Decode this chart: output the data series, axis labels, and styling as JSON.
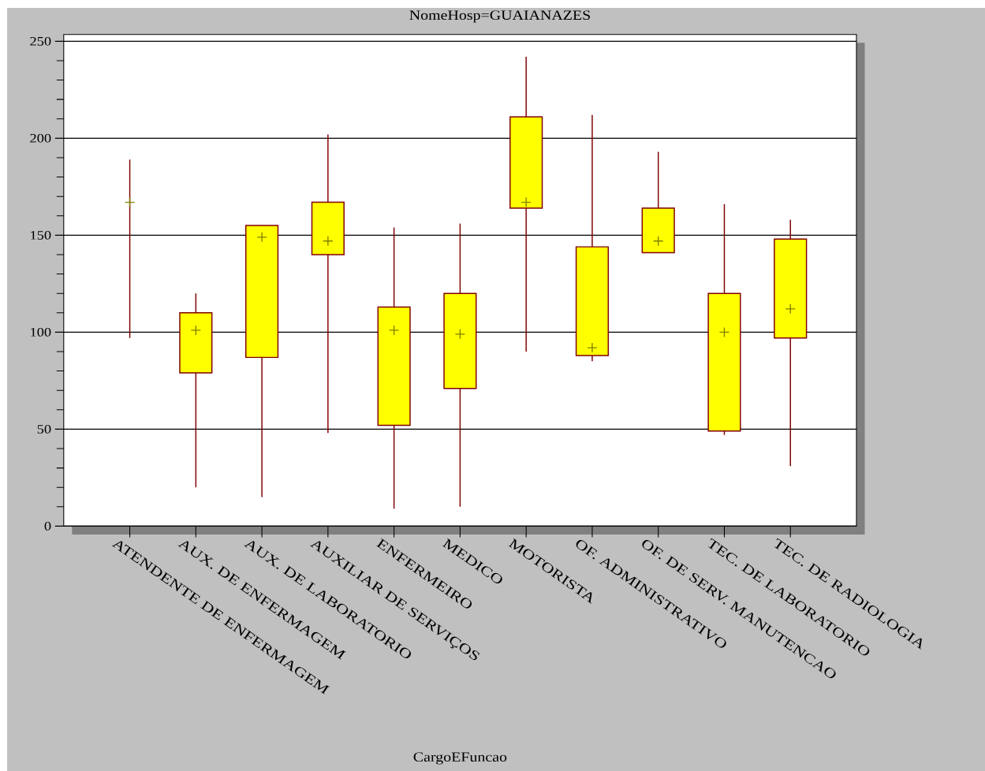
{
  "chart_data": {
    "type": "box",
    "title": "NomeHosp=GUAIANAZES",
    "xlabel": "CargoEFuncao",
    "categories": [
      "ATENDENTE DE ENFERMAGEM",
      "AUX. DE ENFERMAGEM",
      "AUX. DE LABORATORIO",
      "AUXILIAR DE SERVIÇOS",
      "ENFERMEIRO",
      "MEDICO",
      "MOTORISTA",
      "OF. ADMINISTRATIVO",
      "OF. DE SERV. MANUTENCAO",
      "TEC. DE LABORATORIO",
      "TEC. DE RADIOLOGIA"
    ],
    "series": [
      {
        "colors": [
          "#808000",
          "#ffff00",
          "#ffff00",
          "#ffff00",
          "#ffff00",
          "#ffff00",
          "#ffff00",
          "#ffff00",
          "#ffff00",
          "#ffff00",
          "#ffff00"
        ],
        "boxes": [
          {
            "low": 97,
            "q1": 167,
            "median": 167,
            "q3": 167,
            "high": 189
          },
          {
            "low": 20,
            "q1": 79,
            "median": 101,
            "q3": 110,
            "high": 120
          },
          {
            "low": 15,
            "q1": 87,
            "median": 149,
            "q3": 155,
            "high": 155
          },
          {
            "low": 48,
            "q1": 140,
            "median": 147,
            "q3": 167,
            "high": 202
          },
          {
            "low": 9,
            "q1": 52,
            "median": 101,
            "q3": 113,
            "high": 154
          },
          {
            "low": 10,
            "q1": 71,
            "median": 99,
            "q3": 120,
            "high": 156
          },
          {
            "low": 90,
            "q1": 164,
            "median": 167,
            "q3": 211,
            "high": 242
          },
          {
            "low": 85,
            "q1": 88,
            "median": 92,
            "q3": 144,
            "high": 212
          },
          {
            "low": 141,
            "q1": 141,
            "median": 147,
            "q3": 164,
            "high": 193
          },
          {
            "low": 47,
            "q1": 49,
            "median": 100,
            "q3": 120,
            "high": 166
          },
          {
            "low": 31,
            "q1": 97,
            "median": 112,
            "q3": 148,
            "high": 158
          }
        ]
      }
    ],
    "ylim": [
      0,
      253.5
    ],
    "yticks": [
      0,
      50,
      100,
      150,
      200,
      250
    ],
    "grid": "y"
  }
}
